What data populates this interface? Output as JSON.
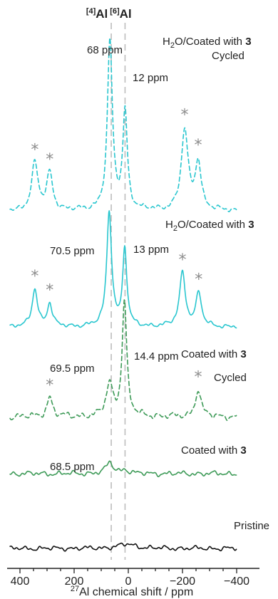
{
  "chart_data": {
    "type": "line",
    "xlabel": "Al chemical shift / ppm",
    "xlabel_isotope": "27",
    "xlim": [
      450,
      -400
    ],
    "x_ticks": [
      400,
      200,
      0,
      -200,
      -400
    ],
    "x_tick_labels": [
      "400",
      "200",
      "0",
      "−200",
      "−400"
    ],
    "reference_lines": [
      {
        "label_sup": "[4]",
        "label": "Al",
        "x": 63
      },
      {
        "label_sup": "[6]",
        "label": "Al",
        "x": 12
      }
    ],
    "colors": {
      "cyan": "#29c6cf",
      "green": "#3d9a57",
      "black": "#111111",
      "reference": "#bdbdbd",
      "star": "#8c8c8c"
    },
    "series": [
      {
        "key": "h2o_coated_cycled",
        "name_line1_parts": [
          {
            "t": "H"
          },
          {
            "t": "2",
            "sub": true
          },
          {
            "t": "O/Coated with "
          },
          {
            "t": "3",
            "bold": true
          }
        ],
        "name_line2": "Cycled",
        "color": "#29c6cf",
        "dashed": true,
        "baseline": 0,
        "peak_max": 1.0,
        "peaks": [
          {
            "center": 68,
            "height": 1.0,
            "width": 11
          },
          {
            "center": 12,
            "height": 0.58,
            "width": 10
          },
          {
            "center": 345,
            "height": 0.28,
            "width": 14
          },
          {
            "center": 290,
            "height": 0.22,
            "width": 13
          },
          {
            "center": -208,
            "height": 0.47,
            "width": 15
          },
          {
            "center": -258,
            "height": 0.28,
            "width": 13
          }
        ],
        "peak_labels": [
          {
            "text": "68 ppm",
            "peak_x": 68
          },
          {
            "text": "12 ppm",
            "peak_x": 12
          }
        ],
        "spinning_sidebands_marked": [
          345,
          290,
          -208,
          -258
        ]
      },
      {
        "key": "h2o_coated",
        "name_line1_parts": [
          {
            "t": "H"
          },
          {
            "t": "2",
            "sub": true
          },
          {
            "t": "O/Coated with "
          },
          {
            "t": "3",
            "bold": true
          }
        ],
        "color": "#29c6cf",
        "dashed": false,
        "baseline": 0,
        "peak_max": 1.0,
        "peaks": [
          {
            "center": 70.5,
            "height": 1.0,
            "width": 11
          },
          {
            "center": 13,
            "height": 0.68,
            "width": 9
          },
          {
            "center": 345,
            "height": 0.33,
            "width": 12
          },
          {
            "center": 290,
            "height": 0.2,
            "width": 11
          },
          {
            "center": -200,
            "height": 0.47,
            "width": 13
          },
          {
            "center": -260,
            "height": 0.29,
            "width": 12
          }
        ],
        "peak_labels": [
          {
            "text": "70.5 ppm",
            "peak_x": 70.5
          },
          {
            "text": "13 ppm",
            "peak_x": 13
          }
        ],
        "spinning_sidebands_marked": [
          345,
          290,
          -200,
          -260
        ]
      },
      {
        "key": "coated_cycled",
        "name_line1_parts": [
          {
            "t": "Coated with "
          },
          {
            "t": "3",
            "bold": true
          }
        ],
        "name_line2": "Cycled",
        "color": "#3d9a57",
        "dashed": true,
        "baseline": 0,
        "peak_max": 1.0,
        "peaks": [
          {
            "center": 69.5,
            "height": 0.28,
            "width": 14
          },
          {
            "center": 14.4,
            "height": 1.0,
            "width": 10
          },
          {
            "center": 290,
            "height": 0.17,
            "width": 12
          },
          {
            "center": -258,
            "height": 0.24,
            "width": 12
          }
        ],
        "peak_labels": [
          {
            "text": "69.5 ppm",
            "peak_x": 69.5
          },
          {
            "text": "14.4 ppm",
            "peak_x": 14.4
          }
        ],
        "spinning_sidebands_marked": [
          290,
          -258
        ]
      },
      {
        "key": "coated",
        "name_line1_parts": [
          {
            "t": "Coated with "
          },
          {
            "t": "3",
            "bold": true
          }
        ],
        "color": "#3d9a57",
        "dashed": false,
        "baseline": 0,
        "peak_max": 1.0,
        "peaks": [
          {
            "center": 68.5,
            "height": 1.0,
            "width": 16
          },
          {
            "center": 12,
            "height": 0.35,
            "width": 16
          }
        ],
        "peak_labels": [
          {
            "text": "68.5 ppm",
            "peak_x": 68.5
          }
        ],
        "spinning_sidebands_marked": []
      },
      {
        "key": "pristine",
        "name_line1_parts": [
          {
            "t": "Pristine"
          }
        ],
        "color": "#111111",
        "dashed": false,
        "baseline": 0,
        "peak_max": 1.0,
        "peaks": [
          {
            "center": 5,
            "height": 0.5,
            "width": 40
          }
        ],
        "peak_labels": [],
        "spinning_sidebands_marked": []
      }
    ]
  }
}
